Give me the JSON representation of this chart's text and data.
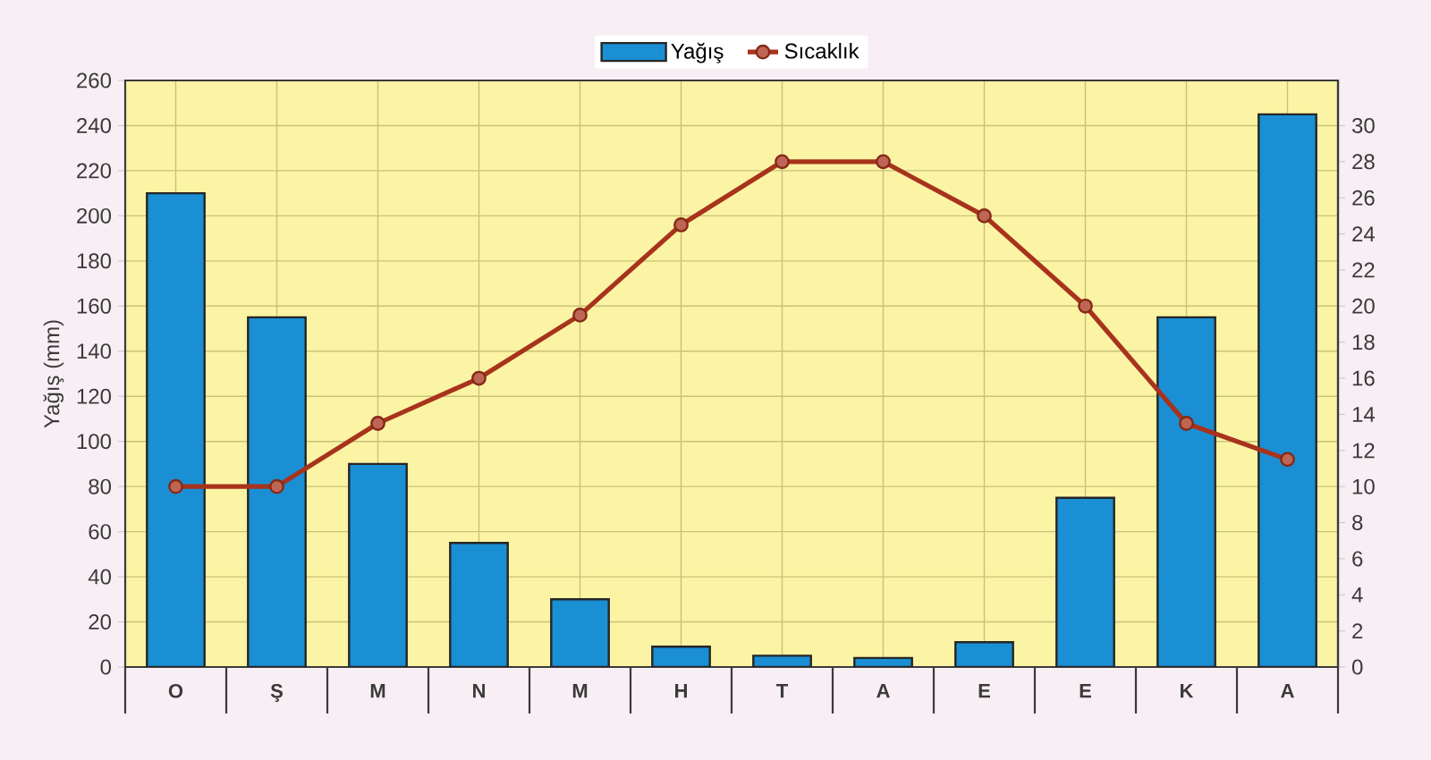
{
  "chart_data": {
    "type": "bar",
    "ylabel": "Yağış (mm)",
    "categories": [
      "O",
      "Ş",
      "M",
      "N",
      "M",
      "H",
      "T",
      "A",
      "E",
      "E",
      "K",
      "A"
    ],
    "series": [
      {
        "name": "Yağış",
        "color": "#1a8fd4",
        "values": [
          210,
          155,
          90,
          55,
          30,
          9,
          5,
          4,
          11,
          75,
          155,
          245
        ]
      },
      {
        "name": "Sıcaklık",
        "type": "line",
        "axis": "y2",
        "color": "#a8331c",
        "marker": "circle",
        "values": [
          10,
          10,
          13.5,
          16,
          19.5,
          24.5,
          28,
          28,
          25,
          20,
          13.5,
          11.5
        ]
      }
    ],
    "ylim": [
      0,
      260
    ],
    "yticks": [
      0,
      20,
      40,
      60,
      80,
      100,
      120,
      140,
      160,
      180,
      200,
      220,
      240,
      260
    ],
    "y2lim": [
      0,
      32.5
    ],
    "y2ticks": [
      0,
      2,
      4,
      6,
      8,
      10,
      12,
      14,
      16,
      18,
      20,
      22,
      24,
      26,
      28,
      30
    ],
    "grid": true,
    "legend": "top"
  }
}
